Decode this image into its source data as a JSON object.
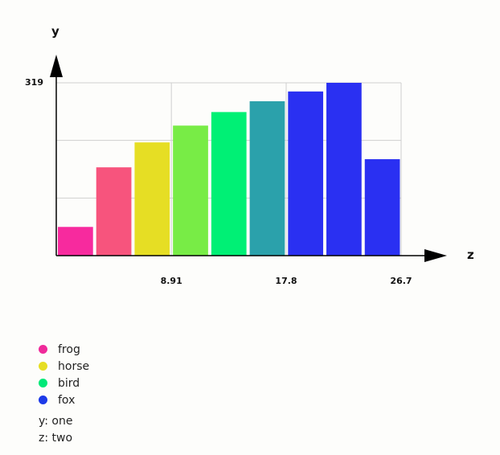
{
  "chart_data": {
    "type": "bar",
    "title": "",
    "xlabel": "z",
    "ylabel": "y",
    "x_tick_labels": [
      "8.91",
      "17.8",
      "26.7"
    ],
    "x_ticks": [
      8.91,
      17.8,
      26.7
    ],
    "xlim": [
      0,
      26.7
    ],
    "y_tick_labels": [
      "319"
    ],
    "y_ticks": [
      319
    ],
    "ylim": [
      0,
      319
    ],
    "grid": true,
    "bars": [
      {
        "x0": 0.0,
        "x1": 2.97,
        "value": 53,
        "color": "#f72a9e"
      },
      {
        "x0": 2.97,
        "x1": 5.94,
        "value": 163,
        "color": "#f7547d"
      },
      {
        "x0": 5.94,
        "x1": 8.91,
        "value": 209,
        "color": "#e6de24"
      },
      {
        "x0": 8.91,
        "x1": 11.88,
        "value": 240,
        "color": "#78ec46"
      },
      {
        "x0": 11.88,
        "x1": 14.85,
        "value": 265,
        "color": "#00f075"
      },
      {
        "x0": 14.85,
        "x1": 17.82,
        "value": 285,
        "color": "#2ba1ab"
      },
      {
        "x0": 17.82,
        "x1": 20.79,
        "value": 303,
        "color": "#2a30f2"
      },
      {
        "x0": 20.79,
        "x1": 23.76,
        "value": 319,
        "color": "#2a30f2"
      },
      {
        "x0": 23.76,
        "x1": 26.73,
        "value": 178,
        "color": "#2a30f2"
      }
    ],
    "legend": [
      {
        "name": "frog",
        "color": "#ef2a9a"
      },
      {
        "name": "horse",
        "color": "#e6de24"
      },
      {
        "name": "bird",
        "color": "#00e978"
      },
      {
        "name": "fox",
        "color": "#1d3ae8"
      }
    ],
    "legend_placement": "bottom-left",
    "axis_notes": [
      "y: one",
      "z: two"
    ]
  }
}
